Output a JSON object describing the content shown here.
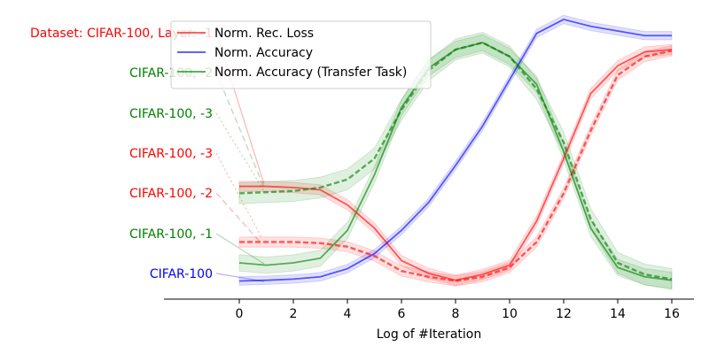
{
  "chart_data": {
    "type": "line",
    "xlabel": "Log of #Iteration",
    "ylabel": "",
    "xlim": [
      -0.5,
      16.8
    ],
    "xticks": [
      0,
      2,
      4,
      6,
      8,
      10,
      12,
      14,
      16
    ],
    "grid": false,
    "legend_placement": "top-left",
    "x": [
      0,
      1,
      2,
      3,
      4,
      5,
      6,
      7,
      8,
      9,
      10,
      11,
      12,
      13,
      14,
      15,
      16
    ],
    "series": [
      {
        "name": "Norm. Rec. Loss",
        "color": "#ff0000",
        "solid": [
          0.41,
          0.41,
          0.405,
          0.395,
          0.33,
          0.23,
          0.09,
          0.035,
          0.005,
          0.03,
          0.07,
          0.26,
          0.53,
          0.81,
          0.93,
          0.99,
          1.0
        ],
        "dashed": [
          0.17,
          0.17,
          0.17,
          0.165,
          0.15,
          0.11,
          0.045,
          0.02,
          0.002,
          0.02,
          0.06,
          0.17,
          0.38,
          0.65,
          0.89,
          0.97,
          0.995
        ]
      },
      {
        "name": "Norm. Accuracy",
        "color": "#0000ff",
        "solid": [
          0.002,
          0.005,
          0.01,
          0.02,
          0.055,
          0.12,
          0.22,
          0.34,
          0.5,
          0.67,
          0.87,
          1.07,
          1.13,
          1.1,
          1.08,
          1.06,
          1.06
        ]
      },
      {
        "name": "Norm. Accuracy (Transfer Task)",
        "color": "#008000",
        "solid": [
          0.08,
          0.07,
          0.08,
          0.1,
          0.22,
          0.46,
          0.75,
          0.92,
          1.0,
          1.03,
          0.97,
          0.85,
          0.56,
          0.23,
          0.06,
          0.02,
          0.005
        ],
        "dashed": [
          0.38,
          0.385,
          0.39,
          0.405,
          0.44,
          0.53,
          0.74,
          0.91,
          1.0,
          1.03,
          0.97,
          0.83,
          0.6,
          0.27,
          0.08,
          0.03,
          0.01
        ]
      }
    ],
    "row_labels": [
      {
        "text": "Dataset: CIFAR-100, Layer: -1",
        "color": "#ff0000"
      },
      {
        "text": "CIFAR-100, -2",
        "color": "#008000"
      },
      {
        "text": "CIFAR-100, -3",
        "color": "#008000"
      },
      {
        "text": "CIFAR-100, -3",
        "color": "#ff0000"
      },
      {
        "text": "CIFAR-100, -2",
        "color": "#ff0000"
      },
      {
        "text": "CIFAR-100, -1",
        "color": "#008000"
      },
      {
        "text": "CIFAR-100",
        "color": "#0000ff"
      }
    ]
  }
}
